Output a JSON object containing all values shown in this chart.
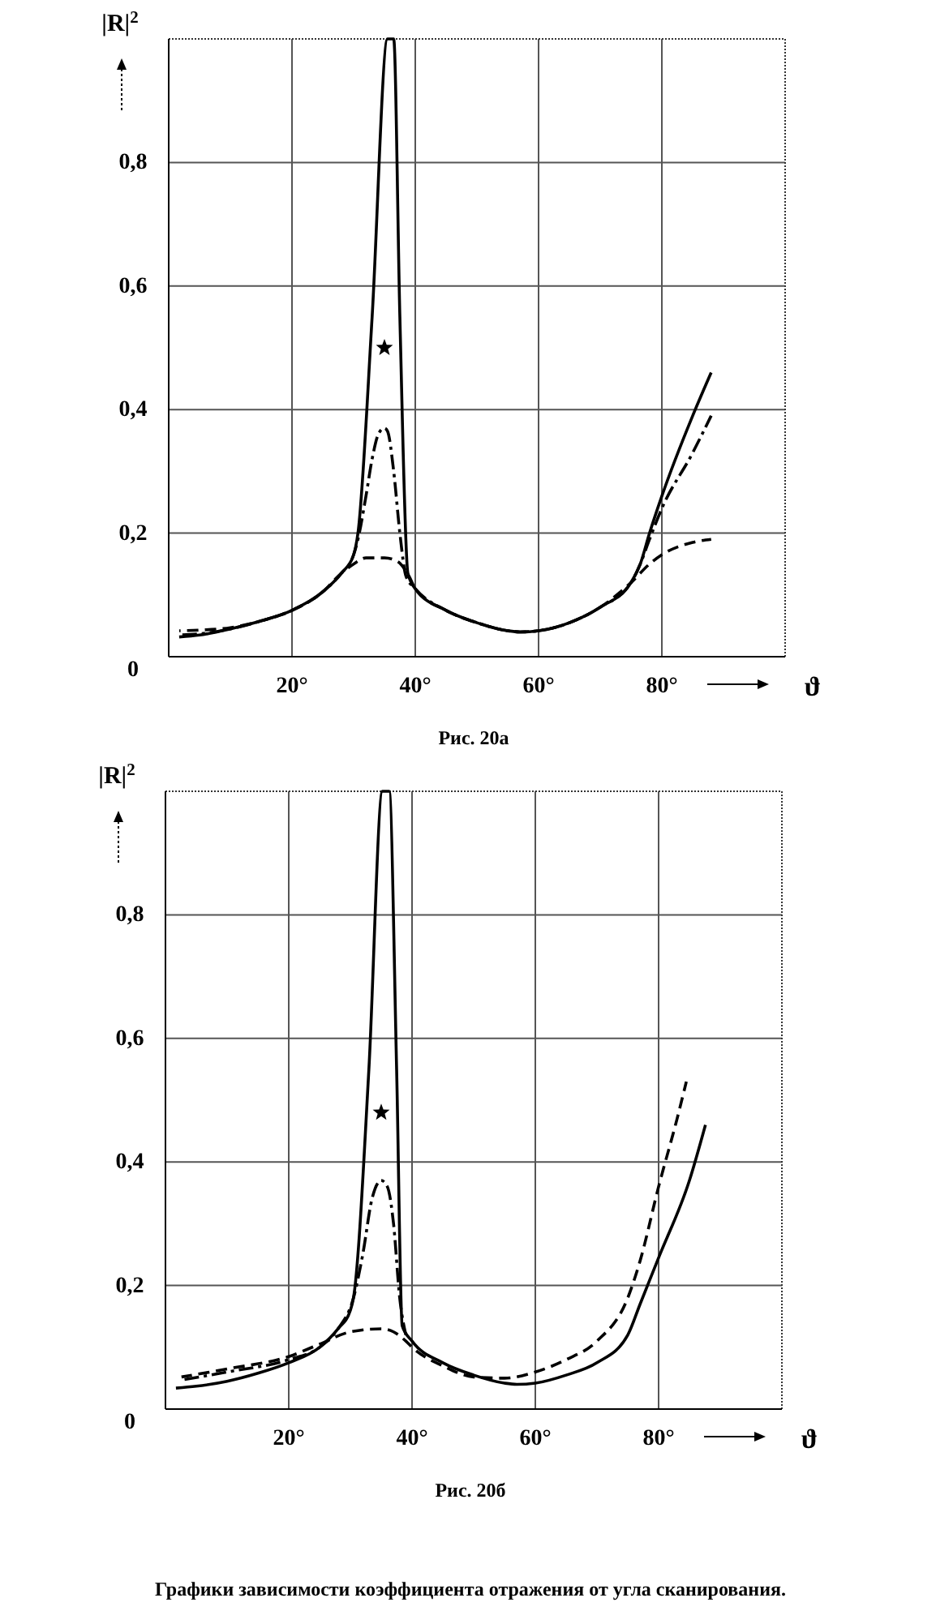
{
  "chart_data": [
    {
      "type": "line",
      "xlabel": "ϑ",
      "ylabel": "|R|$^{2}$",
      "xlim": [
        0,
        100
      ],
      "ylim": [
        0,
        1
      ],
      "xticks": [
        {
          "value": 20,
          "label": "20°"
        },
        {
          "value": 40,
          "label": "40°"
        },
        {
          "value": 60,
          "label": "60°"
        },
        {
          "value": 80,
          "label": "80°"
        }
      ],
      "yticks": [
        0,
        {
          "value": 0.2,
          "label": "0,2"
        },
        {
          "value": 0.4,
          "label": "0,4"
        },
        {
          "value": 0.6,
          "label": "0,6"
        },
        {
          "value": 0.8,
          "label": "0,8"
        }
      ],
      "grid": true,
      "marker": "none",
      "annotations": [
        "Рис. 20а"
      ],
      "series": [
        {
          "color": "#000000",
          "line_style": "solid",
          "x": [
            1.7,
            5,
            10,
            15,
            20,
            25,
            28,
            30,
            30.7,
            33,
            35.5,
            36.5,
            37.5,
            38.8,
            40,
            45,
            50,
            55,
            57,
            60,
            65,
            70,
            75,
            76.5,
            78,
            80,
            85,
            88
          ],
          "values": [
            0.032,
            0.035,
            0.045,
            0.058,
            0.075,
            0.105,
            0.135,
            0.165,
            0.2,
            0.55,
            1,
            1,
            0.55,
            0.135,
            0.11,
            0.075,
            0.055,
            0.042,
            0.04,
            0.042,
            0.055,
            0.08,
            0.12,
            0.15,
            0.2,
            0.26,
            0.39,
            0.46
          ]
        },
        {
          "color": "#000000",
          "line_style": "dashdot",
          "x": [
            1.7,
            5,
            10,
            15,
            20,
            25,
            28,
            30,
            30.7,
            32,
            33,
            34,
            35,
            35.5,
            36.5,
            37.5,
            38.5,
            40,
            45,
            50,
            55,
            57,
            60,
            65,
            70,
            75,
            76.5,
            78,
            80,
            85,
            88
          ],
          "values": [
            0.035,
            0.037,
            0.045,
            0.058,
            0.075,
            0.105,
            0.135,
            0.165,
            0.19,
            0.26,
            0.32,
            0.36,
            0.37,
            0.365,
            0.3,
            0.2,
            0.13,
            0.11,
            0.075,
            0.055,
            0.042,
            0.04,
            0.042,
            0.055,
            0.08,
            0.12,
            0.15,
            0.19,
            0.24,
            0.33,
            0.39
          ]
        },
        {
          "color": "#000000",
          "line_style": "dashed",
          "x": [
            1.7,
            5,
            10,
            15,
            20,
            25,
            28,
            30,
            32,
            35,
            37,
            39,
            40,
            45,
            50,
            55,
            57,
            60,
            65,
            70,
            75,
            78,
            80,
            85,
            88
          ],
          "values": [
            0.042,
            0.043,
            0.047,
            0.058,
            0.075,
            0.105,
            0.135,
            0.15,
            0.16,
            0.16,
            0.155,
            0.13,
            0.11,
            0.075,
            0.055,
            0.042,
            0.04,
            0.042,
            0.055,
            0.08,
            0.12,
            0.15,
            0.165,
            0.185,
            0.19
          ]
        },
        {
          "type": "scatter",
          "marker": "star",
          "color": "#000000",
          "x": [
            35
          ],
          "values": [
            0.5
          ]
        }
      ]
    },
    {
      "type": "line",
      "xlabel": "ϑ",
      "ylabel": "|R|$^{2}$",
      "xlim": [
        0,
        100
      ],
      "ylim": [
        0,
        1
      ],
      "xticks": [
        {
          "value": 20,
          "label": "20°"
        },
        {
          "value": 40,
          "label": "40°"
        },
        {
          "value": 60,
          "label": "60°"
        },
        {
          "value": 80,
          "label": "80°"
        }
      ],
      "yticks": [
        0,
        {
          "value": 0.2,
          "label": "0,2"
        },
        {
          "value": 0.4,
          "label": "0,4"
        },
        {
          "value": 0.6,
          "label": "0,6"
        },
        {
          "value": 0.8,
          "label": "0,8"
        }
      ],
      "grid": true,
      "marker": "none",
      "annotations": [
        "Рис. 20б",
        "Графики зависимости коэффициента отражения от угла сканирования."
      ],
      "series": [
        {
          "color": "#000000",
          "line_style": "solid",
          "x": [
            1.7,
            5,
            10,
            15,
            20,
            25,
            28,
            30,
            30.5,
            33,
            35.2,
            36.3,
            37.5,
            38.4,
            40,
            45,
            50,
            55,
            57,
            60,
            65,
            70,
            75,
            77,
            80,
            85,
            87.6
          ],
          "values": [
            0.034,
            0.037,
            0.045,
            0.058,
            0.075,
            0.1,
            0.13,
            0.16,
            0.18,
            0.55,
            1,
            1,
            0.55,
            0.135,
            0.11,
            0.075,
            0.055,
            0.042,
            0.04,
            0.042,
            0.055,
            0.075,
            0.12,
            0.17,
            0.245,
            0.37,
            0.46
          ]
        },
        {
          "color": "#000000",
          "line_style": "dashdot",
          "x": [
            2.6,
            10,
            20,
            25,
            28,
            30.5,
            32,
            33.5,
            35,
            36,
            37,
            38,
            39
          ],
          "values": [
            0.047,
            0.06,
            0.08,
            0.1,
            0.13,
            0.18,
            0.25,
            0.34,
            0.37,
            0.36,
            0.3,
            0.18,
            0.12
          ]
        },
        {
          "color": "#000000",
          "line_style": "dashed",
          "x": [
            2.6,
            10,
            20,
            25,
            30,
            35,
            37,
            39,
            40,
            45,
            50,
            55,
            60,
            65,
            70,
            75,
            77,
            80,
            83,
            84.5
          ],
          "values": [
            0.052,
            0.065,
            0.085,
            0.105,
            0.125,
            0.13,
            0.125,
            0.11,
            0.1,
            0.07,
            0.052,
            0.05,
            0.06,
            0.08,
            0.11,
            0.18,
            0.24,
            0.36,
            0.47,
            0.53
          ]
        },
        {
          "type": "scatter",
          "marker": "star",
          "color": "#000000",
          "x": [
            35
          ],
          "values": [
            0.48
          ]
        }
      ]
    }
  ]
}
